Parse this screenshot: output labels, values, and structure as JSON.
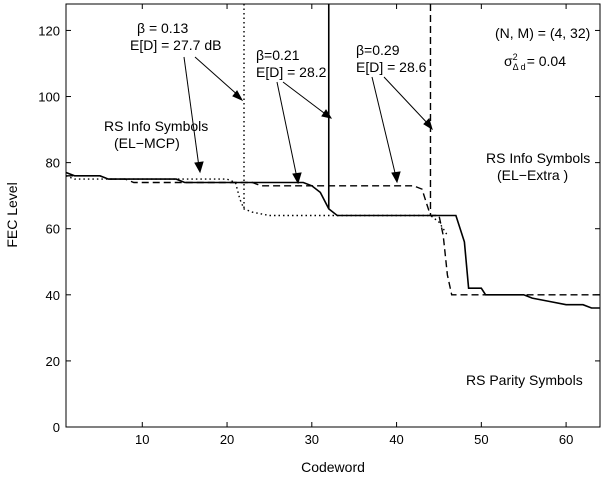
{
  "chart_data": {
    "type": "line",
    "title": "",
    "xlabel": "Codeword",
    "ylabel": "FEC Level",
    "xlim": [
      1,
      64
    ],
    "ylim": [
      0,
      128
    ],
    "xticks": [
      10,
      20,
      30,
      40,
      50,
      60
    ],
    "yticks": [
      0,
      20,
      40,
      60,
      80,
      100,
      120
    ],
    "grid": false,
    "series": [
      {
        "style": "solid",
        "points": [
          [
            1,
            77
          ],
          [
            2,
            76
          ],
          [
            5,
            76
          ],
          [
            6,
            75
          ],
          [
            14,
            75
          ],
          [
            15,
            74
          ],
          [
            29,
            74
          ],
          [
            30,
            73
          ],
          [
            31,
            71
          ],
          [
            32,
            66
          ],
          [
            33,
            64
          ],
          [
            47,
            64
          ],
          [
            48,
            56
          ],
          [
            48.5,
            42
          ],
          [
            50,
            42
          ],
          [
            50.5,
            40
          ],
          [
            55,
            40
          ],
          [
            56,
            39
          ],
          [
            58,
            38
          ],
          [
            60,
            37
          ],
          [
            62,
            37
          ],
          [
            63,
            36
          ],
          [
            64,
            36
          ]
        ],
        "drop_x": 32
      },
      {
        "style": "dashed",
        "points": [
          [
            1,
            76
          ],
          [
            2,
            76
          ],
          [
            5,
            76
          ],
          [
            6,
            75
          ],
          [
            8,
            75
          ],
          [
            9,
            74
          ],
          [
            23,
            74
          ],
          [
            24,
            73
          ],
          [
            42,
            73
          ],
          [
            43,
            72
          ],
          [
            43.5,
            68
          ],
          [
            44,
            64
          ],
          [
            45,
            64
          ],
          [
            45.5,
            58
          ],
          [
            46,
            46
          ],
          [
            46.5,
            40
          ],
          [
            50,
            40
          ],
          [
            64,
            40
          ]
        ],
        "drop_x": 44
      },
      {
        "style": "dotted",
        "points": [
          [
            1,
            76
          ],
          [
            2,
            75
          ],
          [
            20,
            75
          ],
          [
            21,
            74
          ],
          [
            21.5,
            69
          ],
          [
            22,
            66
          ],
          [
            23,
            65
          ],
          [
            25,
            64
          ],
          [
            44,
            64
          ],
          [
            45,
            62
          ],
          [
            46,
            58
          ]
        ],
        "drop_x": 22
      }
    ],
    "annotations": {
      "b1": "β = 0.13",
      "e1": "E[D] = 27.7 dB",
      "b2": "β=0.21",
      "e2": "E[D] = 28.2",
      "b3": "β=0.29",
      "e3": "E[D] = 28.6",
      "nm": "(N, M) = (4, 32)",
      "sigma_sym": "σ",
      "sigma_sup": "2",
      "sigma_sub": "Δ d",
      "sigma_val": "= 0.04",
      "rs_info_mcp_1": "RS Info Symbols",
      "rs_info_mcp_2": "(EL−MCP)",
      "rs_info_extra_1": "RS Info Symbols",
      "rs_info_extra_2": "(EL−Extra )",
      "rs_parity": "RS Parity Symbols"
    }
  }
}
